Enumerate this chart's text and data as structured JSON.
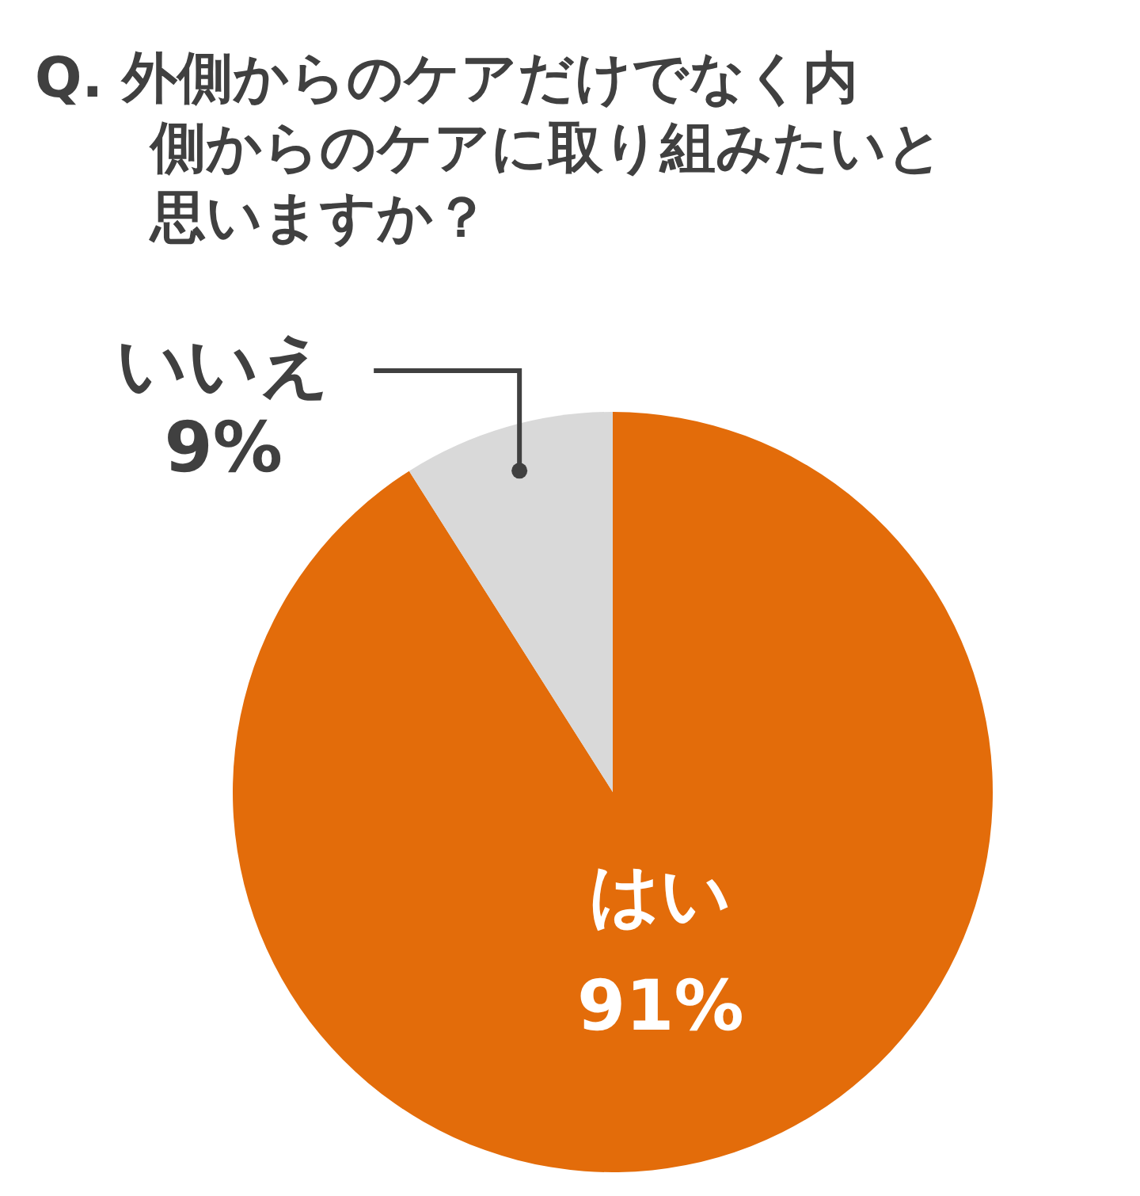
{
  "chart_data": {
    "type": "pie",
    "title": "Q. 外側からのケアだけでなく内側からのケアに取り組みたいと思いますか？",
    "categories": [
      "はい",
      "いいえ"
    ],
    "values": [
      91,
      9
    ],
    "value_labels": [
      "91%",
      "9%"
    ],
    "colors": [
      "#e36c0a",
      "#d9d9d9"
    ]
  }
}
